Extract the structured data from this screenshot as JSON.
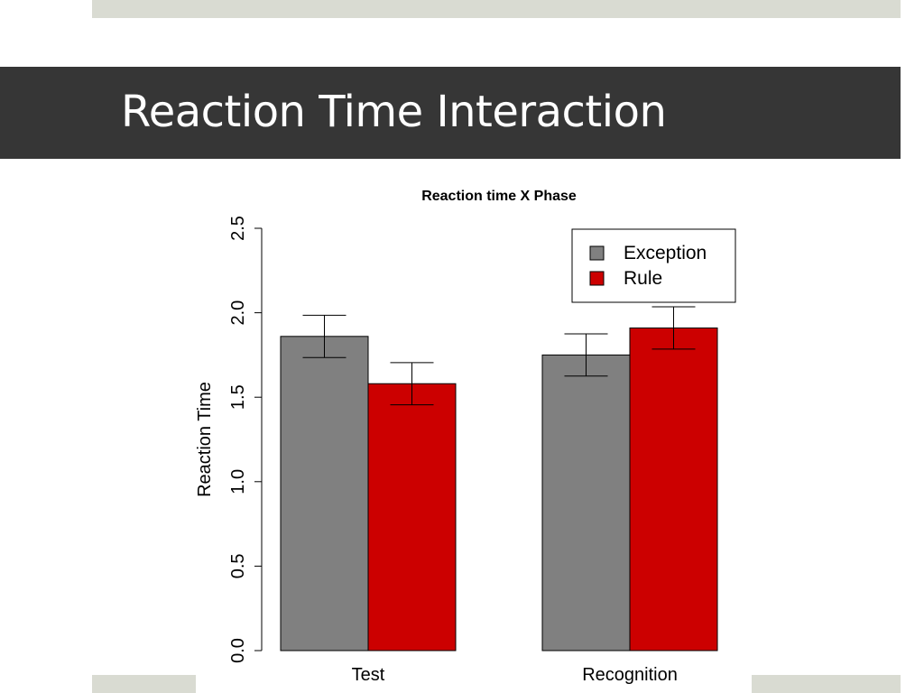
{
  "slide": {
    "title": "Reaction Time Interaction"
  },
  "colors": {
    "title_band": "#363636",
    "decor": "#d9dbd2"
  },
  "chart_data": {
    "type": "bar",
    "title": "Reaction time X Phase",
    "xlabel": "",
    "ylabel": "Reaction Time",
    "ylim": [
      0,
      2.5
    ],
    "yticks": [
      "0.0",
      "0.5",
      "1.0",
      "1.5",
      "2.0",
      "2.5"
    ],
    "categories": [
      "Test",
      "Recognition"
    ],
    "series": [
      {
        "name": "Exception",
        "color": "#808080",
        "values": [
          1.86,
          1.75
        ],
        "error": [
          0.125,
          0.125
        ]
      },
      {
        "name": "Rule",
        "color": "#cc0000",
        "values": [
          1.58,
          1.91
        ],
        "error": [
          0.125,
          0.125
        ]
      }
    ],
    "legend_position": "top-right",
    "grid": false
  }
}
